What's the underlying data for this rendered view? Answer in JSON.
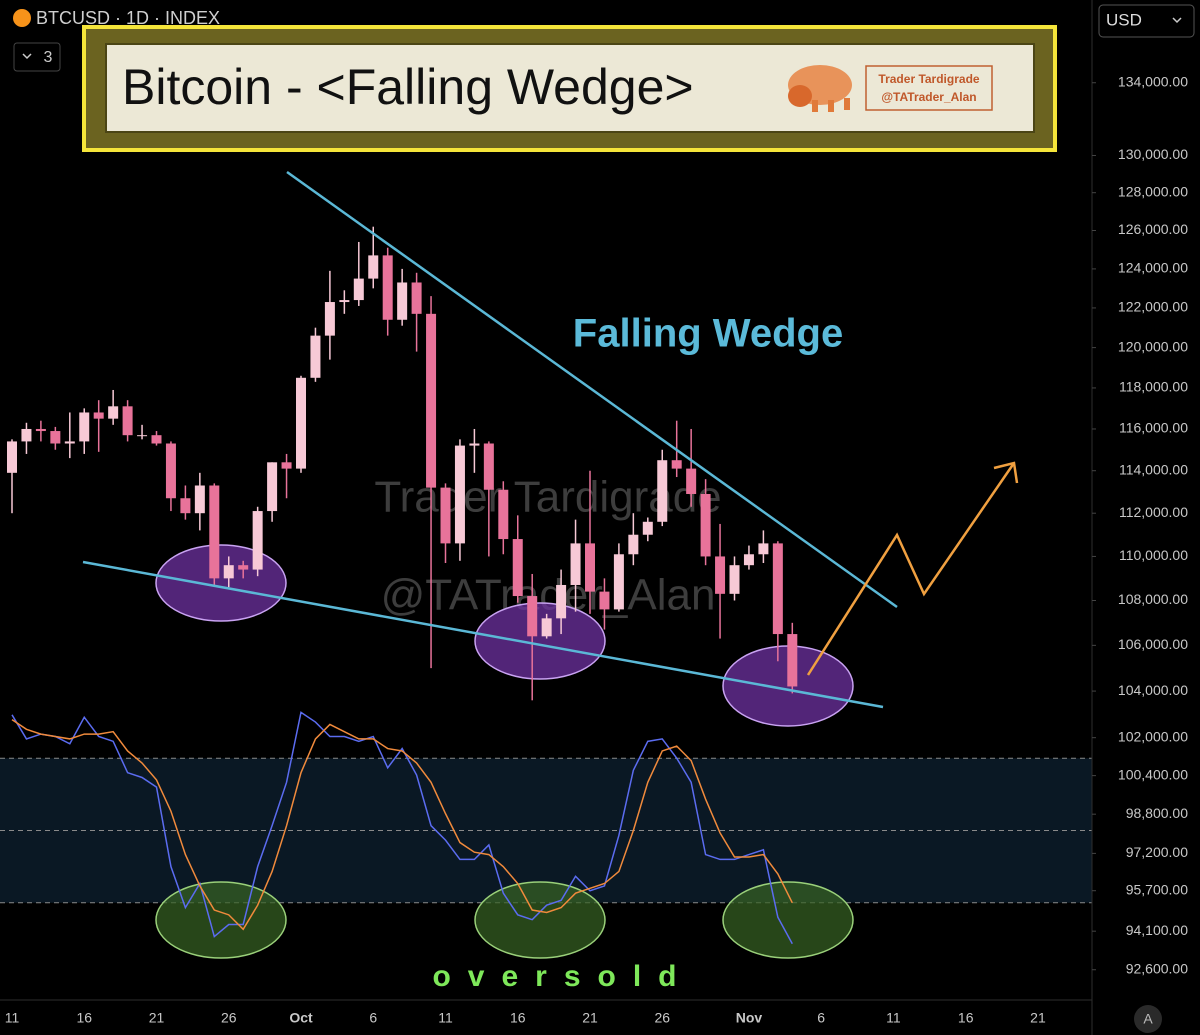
{
  "header": {
    "symbol": "BTCUSD · 1D · INDEX",
    "layouts": "3",
    "currency": "USD",
    "scale_button": "A"
  },
  "chart_data": [
    {
      "type": "candlestick",
      "title": "Bitcoin - <Falling Wedge>",
      "logo": {
        "name": "Trader Tardigrade",
        "handle": "@TATrader_Alan"
      },
      "watermark": [
        "Trader Tardigrade",
        "@TATrader_Alan"
      ],
      "annotations": [
        "Falling Wedge",
        "oversold"
      ],
      "categories": [
        "11",
        null,
        null,
        null,
        null,
        "16",
        null,
        null,
        null,
        null,
        "21",
        null,
        null,
        null,
        null,
        "26",
        null,
        null,
        null,
        null,
        "Oct",
        null,
        null,
        null,
        null,
        "6",
        null,
        null,
        null,
        null,
        "11",
        null,
        null,
        null,
        null,
        "16",
        null,
        null,
        null,
        null,
        "21",
        null,
        null,
        null,
        null,
        "26",
        null,
        null,
        null,
        null,
        null,
        "Nov",
        null,
        null,
        null,
        null,
        "6",
        null,
        null,
        null,
        null,
        "11",
        null,
        null,
        null,
        null,
        "16",
        null,
        null,
        null,
        null,
        "21",
        null,
        null,
        null
      ],
      "open": [
        113900,
        115400,
        116000,
        115900,
        115300,
        115400,
        116800,
        116500,
        117100,
        115700,
        115700,
        115300,
        112700,
        112000,
        113300,
        109000,
        109600,
        109400,
        112100,
        114400,
        114100,
        118500,
        120600,
        122300,
        122400,
        123500,
        124700,
        121400,
        123300,
        121700,
        113200,
        110600,
        115200,
        115300,
        113100,
        110800,
        108200,
        106400,
        107200,
        108700,
        110600,
        108400,
        107600,
        110100,
        111000,
        111600,
        114500,
        114100,
        112900,
        110000,
        108300,
        109600,
        110100,
        110600,
        106500,
        null,
        null,
        null,
        null,
        null,
        null,
        null,
        null,
        null,
        null,
        null,
        null,
        null,
        null,
        null,
        null,
        null,
        null,
        null,
        null
      ],
      "high": [
        115500,
        116300,
        116400,
        116100,
        116800,
        117000,
        117400,
        117900,
        117400,
        116200,
        115900,
        115400,
        113300,
        113900,
        113400,
        110000,
        109800,
        112300,
        114400,
        114800,
        118600,
        121000,
        123900,
        122900,
        125400,
        126200,
        125100,
        124000,
        123800,
        122600,
        113400,
        115500,
        116000,
        115400,
        113500,
        111900,
        109200,
        107400,
        109400,
        111700,
        114000,
        109000,
        110600,
        112000,
        111800,
        115000,
        116400,
        116000,
        113600,
        111500,
        110000,
        110500,
        111200,
        110700,
        107000,
        null,
        null,
        null,
        null,
        null,
        null,
        null,
        null,
        null,
        null,
        null,
        null,
        null,
        null,
        null,
        null,
        null,
        null,
        null,
        null
      ],
      "low": [
        112000,
        114800,
        115400,
        115000,
        114600,
        114800,
        114900,
        116200,
        115400,
        115500,
        115200,
        112100,
        111700,
        111200,
        108700,
        108600,
        109000,
        109100,
        111600,
        112700,
        113900,
        118300,
        119400,
        121700,
        122100,
        123000,
        120600,
        121100,
        119800,
        105000,
        109700,
        109800,
        113900,
        110000,
        110100,
        107900,
        103600,
        106300,
        106500,
        107500,
        107400,
        106700,
        107500,
        109600,
        110700,
        111400,
        113700,
        112300,
        109600,
        106300,
        108000,
        109400,
        109700,
        105300,
        103900,
        null,
        null,
        null,
        null,
        null,
        null,
        null,
        null,
        null,
        null,
        null,
        null,
        null,
        null,
        null,
        null,
        null,
        null,
        null,
        null
      ],
      "close": [
        115400,
        116000,
        115900,
        115300,
        115400,
        116800,
        116500,
        117100,
        115700,
        115700,
        115300,
        112700,
        112000,
        113300,
        109000,
        109600,
        109400,
        112100,
        114400,
        114100,
        118500,
        120600,
        122300,
        122400,
        123500,
        124700,
        121400,
        123300,
        121700,
        113200,
        110600,
        115200,
        115300,
        113100,
        110800,
        108200,
        106400,
        107200,
        108700,
        110600,
        108400,
        107600,
        110100,
        111000,
        111600,
        114500,
        114100,
        112900,
        110000,
        108300,
        109600,
        110100,
        110600,
        106500,
        104200,
        null,
        null,
        null,
        null,
        null,
        null,
        null,
        null,
        null,
        null,
        null,
        null,
        null,
        null,
        null,
        null,
        null,
        null,
        null,
        null
      ],
      "up_color": "#f7c9d6",
      "down_color": "#e8739a",
      "log_scale": true,
      "ylim": [
        91440,
        138700
      ],
      "yticks": [
        {
          "value": 134000,
          "label": "134,000.00"
        },
        {
          "value": 130000,
          "label": "130,000.00"
        },
        {
          "value": 128000,
          "label": "128,000.00"
        },
        {
          "value": 126000,
          "label": "126,000.00"
        },
        {
          "value": 124000,
          "label": "124,000.00"
        },
        {
          "value": 122000,
          "label": "122,000.00"
        },
        {
          "value": 120000,
          "label": "120,000.00"
        },
        {
          "value": 118000,
          "label": "118,000.00"
        },
        {
          "value": 116000,
          "label": "116,000.00"
        },
        {
          "value": 114000,
          "label": "114,000.00"
        },
        {
          "value": 112000,
          "label": "112,000.00"
        },
        {
          "value": 110000,
          "label": "110,000.00"
        },
        {
          "value": 108000,
          "label": "108,000.00"
        },
        {
          "value": 106000,
          "label": "106,000.00"
        },
        {
          "value": 104000,
          "label": "104,000.00"
        },
        {
          "value": 102000,
          "label": "102,000.00"
        },
        {
          "value": 100400,
          "label": "100,400.00"
        },
        {
          "value": 98800,
          "label": "98,800.00"
        },
        {
          "value": 97200,
          "label": "97,200.00"
        },
        {
          "value": 95700,
          "label": "95,700.00"
        },
        {
          "value": 94100,
          "label": "94,100.00"
        },
        {
          "value": 92600,
          "label": "92,600.00"
        }
      ]
    },
    {
      "type": "line",
      "ylim": [
        0,
        100
      ],
      "levels": [
        80,
        50,
        20
      ],
      "band_color": "#0a1824",
      "series": [
        {
          "color": "#5b6cf0",
          "values": [
            98,
            88,
            90,
            89,
            86,
            97,
            89,
            87,
            74,
            72,
            68,
            35,
            18,
            28,
            6,
            11,
            11,
            35,
            52,
            70,
            99,
            95,
            89,
            89,
            87,
            89,
            76,
            84,
            73,
            52,
            46,
            38,
            38,
            44,
            24,
            15,
            13,
            19,
            21,
            31,
            25,
            27,
            48,
            75,
            87,
            88,
            80,
            70,
            40,
            38,
            38,
            40,
            42,
            14,
            3,
            null,
            null,
            null,
            null,
            null,
            null,
            null,
            null,
            null,
            null,
            null,
            null,
            null,
            null,
            null,
            null,
            null,
            null,
            null,
            null
          ]
        },
        {
          "color": "#f08a3c",
          "values": [
            96,
            92,
            90,
            89,
            88,
            90,
            90,
            91,
            83,
            78,
            71,
            58,
            40,
            27,
            17,
            15,
            9,
            19,
            33,
            52,
            74,
            88,
            94,
            91,
            88,
            88,
            84,
            83,
            78,
            70,
            57,
            45,
            41,
            40,
            35,
            28,
            17,
            16,
            18,
            24,
            26,
            28,
            33,
            50,
            70,
            83,
            85,
            79,
            63,
            49,
            39,
            39,
            40,
            32,
            20,
            null,
            null,
            null,
            null,
            null,
            null,
            null,
            null,
            null,
            null,
            null,
            null,
            null,
            null,
            null,
            null,
            null,
            null,
            null,
            null
          ]
        }
      ]
    }
  ]
}
